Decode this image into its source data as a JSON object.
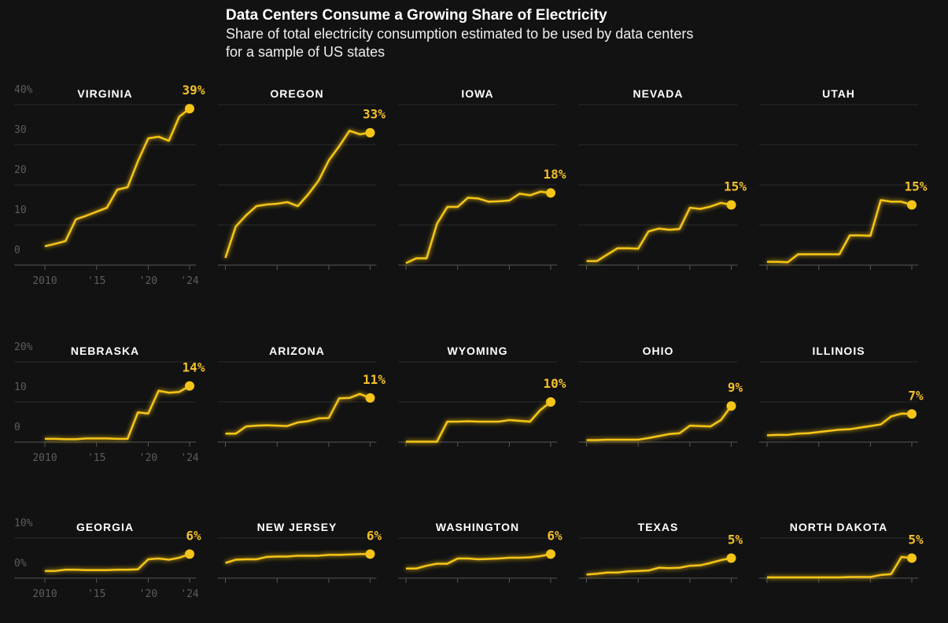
{
  "title": "Data Centers Consume a Growing Share of Electricity",
  "subtitle": "Share of total electricity consumption estimated to be used by data centers for a sample of US states",
  "chart_data": [
    {
      "type": "line",
      "title": "VIRGINIA",
      "x": [
        2010,
        2011,
        2012,
        2013,
        2014,
        2015,
        2016,
        2017,
        2018,
        2019,
        2020,
        2021,
        2022,
        2023,
        2024
      ],
      "xticks": [
        2010,
        {
          "value": 2015,
          "label": "'15"
        },
        {
          "value": 2020,
          "label": "'20"
        },
        {
          "value": 2024,
          "label": "'24"
        }
      ],
      "ylim": [
        0,
        40
      ],
      "yticks": [
        0,
        10,
        20,
        30,
        {
          "value": 40,
          "label": "40%"
        }
      ],
      "grid": true,
      "series": [
        {
          "color": "#f5c518",
          "values": [
            4.7,
            5.3,
            6,
            11.4,
            12.3,
            13.3,
            14.3,
            18.8,
            19.4,
            25.9,
            31.6,
            32,
            31,
            37,
            39
          ],
          "value_labels": [
            null,
            null,
            null,
            null,
            null,
            null,
            null,
            null,
            null,
            null,
            null,
            null,
            null,
            null,
            "39%"
          ]
        }
      ]
    },
    {
      "type": "line",
      "title": "OREGON",
      "x": [
        2010,
        2011,
        2012,
        2013,
        2014,
        2015,
        2016,
        2017,
        2018,
        2019,
        2020,
        2021,
        2022,
        2023,
        2024
      ],
      "xticks": [
        2010,
        2015,
        2020,
        2024
      ],
      "xtick_labels": false,
      "ylim": [
        0,
        40
      ],
      "yticks": [
        0,
        10,
        20,
        30,
        40
      ],
      "ytick_labels": false,
      "grid": true,
      "series": [
        {
          "color": "#f5c518",
          "values": [
            1.8,
            9.6,
            12.4,
            14.7,
            15.1,
            15.3,
            15.7,
            14.7,
            17.6,
            21,
            26.1,
            29.6,
            33.5,
            32.6,
            33
          ],
          "value_labels": [
            null,
            null,
            null,
            null,
            null,
            null,
            null,
            null,
            null,
            null,
            null,
            null,
            null,
            null,
            "33%"
          ]
        }
      ]
    },
    {
      "type": "line",
      "title": "IOWA",
      "x": [
        2010,
        2011,
        2012,
        2013,
        2014,
        2015,
        2016,
        2017,
        2018,
        2019,
        2020,
        2021,
        2022,
        2023,
        2024
      ],
      "xticks": [
        2010,
        2015,
        2020,
        2024
      ],
      "xtick_labels": false,
      "ylim": [
        0,
        40
      ],
      "yticks": [
        0,
        10,
        20,
        30,
        40
      ],
      "ytick_labels": false,
      "grid": true,
      "series": [
        {
          "color": "#f5c518",
          "values": [
            0.5,
            1.7,
            1.7,
            10.3,
            14.5,
            14.5,
            16.8,
            16.6,
            15.8,
            15.9,
            16.1,
            17.8,
            17.4,
            18.3,
            18
          ],
          "value_labels": [
            null,
            null,
            null,
            null,
            null,
            null,
            null,
            null,
            null,
            null,
            null,
            null,
            null,
            null,
            "18%"
          ]
        }
      ]
    },
    {
      "type": "line",
      "title": "NEVADA",
      "x": [
        2010,
        2011,
        2012,
        2013,
        2014,
        2015,
        2016,
        2017,
        2018,
        2019,
        2020,
        2021,
        2022,
        2023,
        2024
      ],
      "xticks": [
        2010,
        2015,
        2020,
        2024
      ],
      "xtick_labels": false,
      "ylim": [
        0,
        40
      ],
      "yticks": [
        0,
        10,
        20,
        30,
        40
      ],
      "ytick_labels": false,
      "grid": true,
      "series": [
        {
          "color": "#f5c518",
          "values": [
            1,
            1,
            2.6,
            4.2,
            4.2,
            4.1,
            8.4,
            9.1,
            8.8,
            9,
            14.3,
            14,
            14.6,
            15.5,
            15
          ],
          "value_labels": [
            null,
            null,
            null,
            null,
            null,
            null,
            null,
            null,
            null,
            null,
            null,
            null,
            null,
            null,
            "15%"
          ]
        }
      ]
    },
    {
      "type": "line",
      "title": "UTAH",
      "x": [
        2010,
        2011,
        2012,
        2013,
        2014,
        2015,
        2016,
        2017,
        2018,
        2019,
        2020,
        2021,
        2022,
        2023,
        2024
      ],
      "xticks": [
        2010,
        2015,
        2020,
        2024
      ],
      "xtick_labels": false,
      "ylim": [
        0,
        40
      ],
      "yticks": [
        0,
        10,
        20,
        30,
        40
      ],
      "ytick_labels": false,
      "grid": true,
      "series": [
        {
          "color": "#f5c518",
          "values": [
            0.8,
            0.8,
            0.7,
            2.7,
            2.7,
            2.7,
            2.7,
            2.7,
            7.4,
            7.4,
            7.3,
            16.2,
            15.8,
            15.8,
            15
          ],
          "value_labels": [
            null,
            null,
            null,
            null,
            null,
            null,
            null,
            null,
            null,
            null,
            null,
            null,
            null,
            null,
            "15%"
          ]
        }
      ]
    },
    {
      "type": "line",
      "title": "NEBRASKA",
      "x": [
        2010,
        2011,
        2012,
        2013,
        2014,
        2015,
        2016,
        2017,
        2018,
        2019,
        2020,
        2021,
        2022,
        2023,
        2024
      ],
      "xticks": [
        2010,
        {
          "value": 2015,
          "label": "'15"
        },
        {
          "value": 2020,
          "label": "'20"
        },
        {
          "value": 2024,
          "label": "'24"
        }
      ],
      "ylim": [
        0,
        20
      ],
      "yticks": [
        0,
        10,
        {
          "value": 20,
          "label": "20%"
        }
      ],
      "grid": true,
      "series": [
        {
          "color": "#f5c518",
          "values": [
            0.8,
            0.8,
            0.7,
            0.7,
            0.9,
            0.9,
            0.9,
            0.8,
            0.8,
            7.4,
            7.1,
            12.8,
            12.3,
            12.5,
            14
          ],
          "value_labels": [
            null,
            null,
            null,
            null,
            null,
            null,
            null,
            null,
            null,
            null,
            null,
            null,
            null,
            null,
            "14%"
          ]
        }
      ]
    },
    {
      "type": "line",
      "title": "ARIZONA",
      "x": [
        2010,
        2011,
        2012,
        2013,
        2014,
        2015,
        2016,
        2017,
        2018,
        2019,
        2020,
        2021,
        2022,
        2023,
        2024
      ],
      "xticks": [
        2010,
        2015,
        2020,
        2024
      ],
      "xtick_labels": false,
      "ylim": [
        0,
        20
      ],
      "yticks": [
        0,
        10,
        20
      ],
      "ytick_labels": false,
      "grid": true,
      "series": [
        {
          "color": "#f5c518",
          "values": [
            2.1,
            2.1,
            3.9,
            4.1,
            4.2,
            4.1,
            4,
            4.9,
            5.2,
            5.9,
            6,
            10.9,
            11,
            12,
            11
          ],
          "value_labels": [
            null,
            null,
            null,
            null,
            null,
            null,
            null,
            null,
            null,
            null,
            null,
            null,
            null,
            null,
            "11%"
          ]
        }
      ]
    },
    {
      "type": "line",
      "title": "WYOMING",
      "x": [
        2010,
        2011,
        2012,
        2013,
        2014,
        2015,
        2016,
        2017,
        2018,
        2019,
        2020,
        2021,
        2022,
        2023,
        2024
      ],
      "xticks": [
        2010,
        2015,
        2020,
        2024
      ],
      "xtick_labels": false,
      "ylim": [
        0,
        20
      ],
      "yticks": [
        0,
        10,
        20
      ],
      "ytick_labels": false,
      "grid": true,
      "series": [
        {
          "color": "#f5c518",
          "values": [
            0.1,
            0.1,
            0.1,
            0.1,
            5.1,
            5.1,
            5.2,
            5.1,
            5.1,
            5.1,
            5.5,
            5.3,
            5.1,
            8,
            10
          ],
          "value_labels": [
            null,
            null,
            null,
            null,
            null,
            null,
            null,
            null,
            null,
            null,
            null,
            null,
            null,
            null,
            "10%"
          ]
        }
      ]
    },
    {
      "type": "line",
      "title": "OHIO",
      "x": [
        2010,
        2011,
        2012,
        2013,
        2014,
        2015,
        2016,
        2017,
        2018,
        2019,
        2020,
        2021,
        2022,
        2023,
        2024
      ],
      "xticks": [
        2010,
        2015,
        2020,
        2024
      ],
      "xtick_labels": false,
      "ylim": [
        0,
        20
      ],
      "yticks": [
        0,
        10,
        20
      ],
      "ytick_labels": false,
      "grid": true,
      "series": [
        {
          "color": "#f5c518",
          "values": [
            0.5,
            0.5,
            0.6,
            0.6,
            0.6,
            0.6,
            1,
            1.5,
            2,
            2.2,
            4.1,
            4,
            3.9,
            5.5,
            9
          ],
          "value_labels": [
            null,
            null,
            null,
            null,
            null,
            null,
            null,
            null,
            null,
            null,
            null,
            null,
            null,
            null,
            "9%"
          ]
        }
      ]
    },
    {
      "type": "line",
      "title": "ILLINOIS",
      "x": [
        2010,
        2011,
        2012,
        2013,
        2014,
        2015,
        2016,
        2017,
        2018,
        2019,
        2020,
        2021,
        2022,
        2023,
        2024
      ],
      "xticks": [
        2010,
        2015,
        2020,
        2024
      ],
      "xtick_labels": false,
      "ylim": [
        0,
        20
      ],
      "yticks": [
        0,
        10,
        20
      ],
      "ytick_labels": false,
      "grid": true,
      "series": [
        {
          "color": "#f5c518",
          "values": [
            1.7,
            1.8,
            1.8,
            2.1,
            2.2,
            2.5,
            2.8,
            3.1,
            3.2,
            3.6,
            4,
            4.4,
            6.4,
            7.1,
            7
          ],
          "value_labels": [
            null,
            null,
            null,
            null,
            null,
            null,
            null,
            null,
            null,
            null,
            null,
            null,
            null,
            null,
            "7%"
          ]
        }
      ]
    },
    {
      "type": "line",
      "title": "GEORGIA",
      "x": [
        2010,
        2011,
        2012,
        2013,
        2014,
        2015,
        2016,
        2017,
        2018,
        2019,
        2020,
        2021,
        2022,
        2023,
        2024
      ],
      "xticks": [
        2010,
        {
          "value": 2015,
          "label": "'15"
        },
        {
          "value": 2020,
          "label": "'20"
        },
        {
          "value": 2024,
          "label": "'24"
        }
      ],
      "ylim": [
        0,
        10
      ],
      "yticks": [
        {
          "value": 0,
          "label": "0%"
        },
        {
          "value": 10,
          "label": "10%"
        }
      ],
      "grid": true,
      "series": [
        {
          "color": "#f5c518",
          "values": [
            1.8,
            1.8,
            2.1,
            2.1,
            2,
            2,
            2,
            2.1,
            2.1,
            2.2,
            4.7,
            4.9,
            4.6,
            5.1,
            6
          ],
          "value_labels": [
            null,
            null,
            null,
            null,
            null,
            null,
            null,
            null,
            null,
            null,
            null,
            null,
            null,
            null,
            "6%"
          ]
        }
      ]
    },
    {
      "type": "line",
      "title": "NEW JERSEY",
      "x": [
        2010,
        2011,
        2012,
        2013,
        2014,
        2015,
        2016,
        2017,
        2018,
        2019,
        2020,
        2021,
        2022,
        2023,
        2024
      ],
      "xticks": [
        2010,
        2015,
        2020,
        2024
      ],
      "xtick_labels": false,
      "ylim": [
        0,
        10
      ],
      "yticks": [
        0,
        10
      ],
      "ytick_labels": false,
      "grid": true,
      "series": [
        {
          "color": "#f5c518",
          "values": [
            3.8,
            4.6,
            4.7,
            4.7,
            5.3,
            5.4,
            5.4,
            5.6,
            5.6,
            5.6,
            5.8,
            5.8,
            5.9,
            6,
            6
          ],
          "value_labels": [
            null,
            null,
            null,
            null,
            null,
            null,
            null,
            null,
            null,
            null,
            null,
            null,
            null,
            null,
            "6%"
          ]
        }
      ]
    },
    {
      "type": "line",
      "title": "WASHINGTON",
      "x": [
        2010,
        2011,
        2012,
        2013,
        2014,
        2015,
        2016,
        2017,
        2018,
        2019,
        2020,
        2021,
        2022,
        2023,
        2024
      ],
      "xticks": [
        2010,
        2015,
        2020,
        2024
      ],
      "xtick_labels": false,
      "ylim": [
        0,
        10
      ],
      "yticks": [
        0,
        10
      ],
      "ytick_labels": false,
      "grid": true,
      "series": [
        {
          "color": "#f5c518",
          "values": [
            2.4,
            2.4,
            3.1,
            3.6,
            3.6,
            4.9,
            4.9,
            4.7,
            4.8,
            4.9,
            5.1,
            5.1,
            5.2,
            5.5,
            6
          ],
          "value_labels": [
            null,
            null,
            null,
            null,
            null,
            null,
            null,
            null,
            null,
            null,
            null,
            null,
            null,
            null,
            "6%"
          ]
        }
      ]
    },
    {
      "type": "line",
      "title": "TEXAS",
      "x": [
        2010,
        2011,
        2012,
        2013,
        2014,
        2015,
        2016,
        2017,
        2018,
        2019,
        2020,
        2021,
        2022,
        2023,
        2024
      ],
      "xticks": [
        2010,
        2015,
        2020,
        2024
      ],
      "xtick_labels": false,
      "ylim": [
        0,
        10
      ],
      "yticks": [
        0,
        10
      ],
      "ytick_labels": false,
      "grid": true,
      "series": [
        {
          "color": "#f5c518",
          "values": [
            0.9,
            1.1,
            1.4,
            1.4,
            1.7,
            1.8,
            1.9,
            2.6,
            2.5,
            2.6,
            3.1,
            3.2,
            3.8,
            4.5,
            5
          ],
          "value_labels": [
            null,
            null,
            null,
            null,
            null,
            null,
            null,
            null,
            null,
            null,
            null,
            null,
            null,
            null,
            "5%"
          ]
        }
      ]
    },
    {
      "type": "line",
      "title": "NORTH DAKOTA",
      "x": [
        2010,
        2011,
        2012,
        2013,
        2014,
        2015,
        2016,
        2017,
        2018,
        2019,
        2020,
        2021,
        2022,
        2023,
        2024
      ],
      "xticks": [
        2010,
        2015,
        2020,
        2024
      ],
      "xtick_labels": false,
      "ylim": [
        0,
        10
      ],
      "yticks": [
        0,
        10
      ],
      "ytick_labels": false,
      "grid": true,
      "series": [
        {
          "color": "#f5c518",
          "values": [
            0.2,
            0.2,
            0.2,
            0.2,
            0.2,
            0.2,
            0.2,
            0.2,
            0.3,
            0.3,
            0.3,
            0.8,
            1,
            5.3,
            5
          ],
          "value_labels": [
            null,
            null,
            null,
            null,
            null,
            null,
            null,
            null,
            null,
            null,
            null,
            null,
            null,
            null,
            "5%"
          ]
        }
      ]
    }
  ]
}
